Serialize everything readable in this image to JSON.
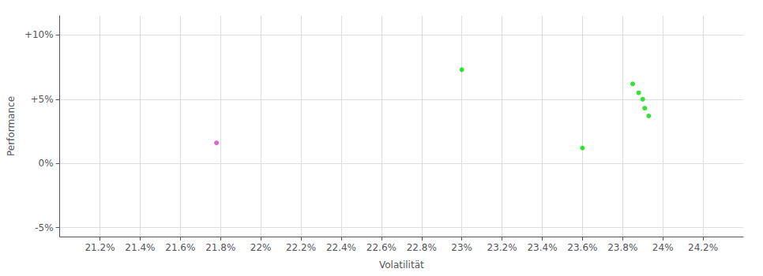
{
  "chart_data": {
    "type": "scatter",
    "xlabel": "Volatilität",
    "ylabel": "Performance",
    "series": [
      {
        "color": "#00dd00",
        "x": [
          0.23,
          0.2385,
          0.2388,
          0.239,
          0.2391,
          0.2393,
          0.236
        ],
        "values": [
          0.073,
          0.062,
          0.055,
          0.05,
          0.043,
          0.037,
          0.012
        ]
      },
      {
        "color": "#cc44cc",
        "x": [
          0.2178
        ],
        "values": [
          0.016
        ]
      }
    ],
    "xlim": [
      0.21,
      0.244
    ],
    "xticks": [
      {
        "value": 0.212,
        "label": "21.2%"
      },
      {
        "value": 0.214,
        "label": "21.4%"
      },
      {
        "value": 0.216,
        "label": "21.6%"
      },
      {
        "value": 0.218,
        "label": "21.8%"
      },
      {
        "value": 0.22,
        "label": "22%"
      },
      {
        "value": 0.222,
        "label": "22.2%"
      },
      {
        "value": 0.224,
        "label": "22.4%"
      },
      {
        "value": 0.226,
        "label": "22.6%"
      },
      {
        "value": 0.228,
        "label": "22.8%"
      },
      {
        "value": 0.23,
        "label": "23%"
      },
      {
        "value": 0.232,
        "label": "23.2%"
      },
      {
        "value": 0.234,
        "label": "23.4%"
      },
      {
        "value": 0.236,
        "label": "23.6%"
      },
      {
        "value": 0.238,
        "label": "23.8%"
      },
      {
        "value": 0.24,
        "label": "24%"
      },
      {
        "value": 0.242,
        "label": "24.2%"
      }
    ],
    "ylim": [
      -0.057,
      0.115
    ],
    "yticks": [
      {
        "value": -0.05,
        "label": "-5%"
      },
      {
        "value": 0.0,
        "label": "0%"
      },
      {
        "value": 0.05,
        "label": "+5%"
      },
      {
        "value": 0.1,
        "label": "+10%"
      }
    ],
    "grid": true
  }
}
